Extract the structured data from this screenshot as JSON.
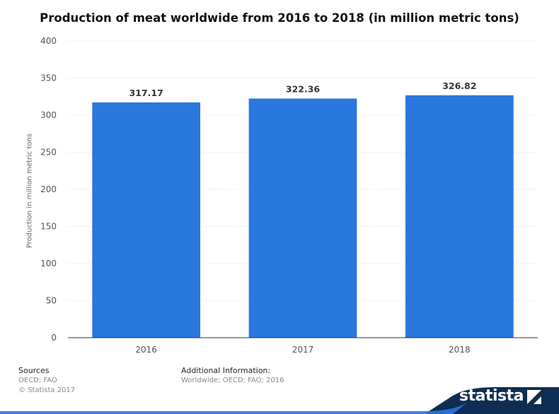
{
  "chart_data": {
    "type": "bar",
    "title": "Production of meat worldwide from 2016 to 2018 (in million metric tons)",
    "ylabel": "Production in million metric tons",
    "xlabel": "",
    "categories": [
      "2016",
      "2017",
      "2018"
    ],
    "values": [
      317.17,
      322.36,
      326.82
    ],
    "value_labels": [
      "317.17",
      "322.36",
      "326.82"
    ],
    "ylim": [
      0,
      400
    ],
    "yticks": [
      0,
      50,
      100,
      150,
      200,
      250,
      300,
      350,
      400
    ],
    "grid": true,
    "bar_color": "#2a77de"
  },
  "footer": {
    "sources_title": "Sources",
    "sources_line1": "OECD; FAO",
    "sources_line2": "© Statista 2017",
    "info_title": "Additional Information:",
    "info_line1": "Worldwide; OECD; FAO; 2016"
  },
  "brand": {
    "name": "statista",
    "icon": "statista-logo-icon",
    "color": "#0f2d52"
  }
}
